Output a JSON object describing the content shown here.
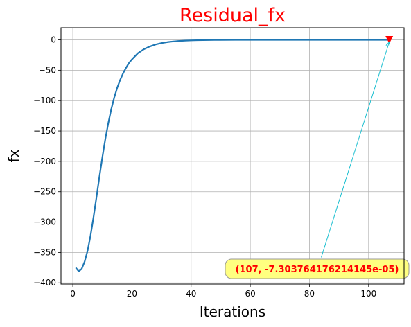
{
  "chart_data": {
    "type": "line",
    "title": "Residual_fx",
    "title_color": "#ff0000",
    "xlabel": "Iterations",
    "ylabel": "fx",
    "xlim": [
      -4,
      112
    ],
    "ylim": [
      -402,
      20
    ],
    "xticks": [
      0,
      20,
      40,
      60,
      80,
      100
    ],
    "yticks": [
      0,
      -50,
      -100,
      -150,
      -200,
      -250,
      -300,
      -350,
      -400
    ],
    "grid": true,
    "series": [
      {
        "color": "#1f77b4",
        "x": [
          1,
          2,
          3,
          4,
          5,
          6,
          7,
          8,
          9,
          10,
          11,
          12,
          13,
          14,
          15,
          16,
          17,
          18,
          19,
          20,
          22,
          24,
          26,
          28,
          30,
          32,
          34,
          36,
          38,
          40,
          42,
          44,
          46,
          48,
          50,
          55,
          60,
          65,
          70,
          75,
          80,
          85,
          90,
          95,
          100,
          105,
          107
        ],
        "y": [
          -375,
          -381,
          -377,
          -365,
          -347,
          -322,
          -292,
          -259,
          -225,
          -193,
          -163,
          -137,
          -114,
          -95,
          -79,
          -66,
          -55,
          -46,
          -38,
          -32,
          -22,
          -15.5,
          -11,
          -7.6,
          -5.3,
          -3.7,
          -2.6,
          -1.8,
          -1.25,
          -0.87,
          -0.6,
          -0.42,
          -0.29,
          -0.2,
          -0.14,
          -0.05,
          -0.02,
          -0.01,
          0,
          0,
          0,
          0,
          0,
          0,
          0,
          0,
          0
        ]
      }
    ],
    "marker": {
      "x": 107,
      "y": 0,
      "color": "#ff0000",
      "shape": "triangle-down"
    },
    "annotation": {
      "text": "(107, -7.303764176214145e-05)",
      "point": [
        107,
        0
      ],
      "box_anchor": [
        84,
        -358
      ],
      "text_color": "#ff0000",
      "box_color": "#ffff80",
      "arrow_color": "#17becf"
    }
  }
}
